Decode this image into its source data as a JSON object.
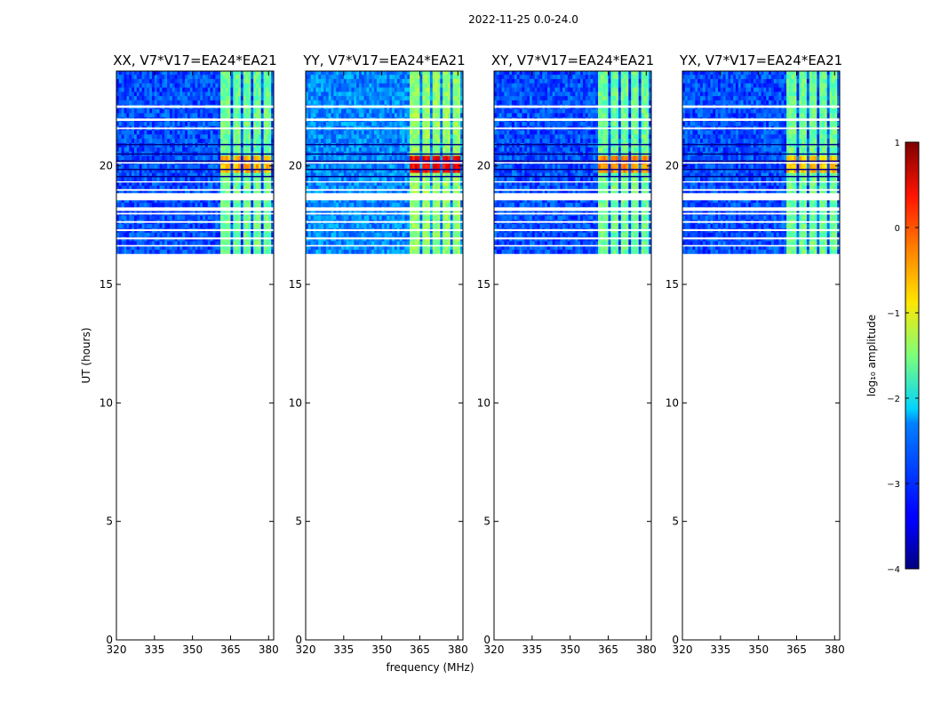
{
  "chart_data": {
    "type": "heatmap",
    "suptitle": "2022-11-25 0.0-24.0",
    "xlabel": "frequency (MHz)",
    "ylabel": "UT (hours)",
    "xlim": [
      320,
      382
    ],
    "ylim": [
      0,
      24
    ],
    "xticks": [
      320,
      335,
      350,
      365,
      380
    ],
    "yticks": [
      0,
      5,
      10,
      15,
      20
    ],
    "data_time_range": [
      16.3,
      24
    ],
    "flagged_time_bands": [
      [
        18.95,
        19.02
      ],
      [
        18.55,
        18.85
      ],
      [
        18.1,
        18.25
      ],
      [
        17.95,
        18.02
      ],
      [
        17.6,
        17.67
      ],
      [
        17.25,
        17.33
      ],
      [
        16.9,
        16.98
      ],
      [
        16.6,
        16.66
      ],
      [
        22.45,
        22.55
      ],
      [
        21.9,
        22.0
      ],
      [
        21.55,
        21.62
      ],
      [
        20.1,
        20.16
      ],
      [
        19.3,
        19.35
      ]
    ],
    "dark_time_lines": [
      20.9,
      20.5,
      20.2,
      19.85,
      19.55
    ],
    "bright_channel_columns_mhz": [
      [
        361,
        365
      ],
      [
        366,
        369
      ],
      [
        370,
        373
      ],
      [
        374,
        377
      ],
      [
        378,
        381
      ]
    ],
    "colorbar": {
      "label": "log₁₀ amplitude",
      "range": [
        -4,
        1
      ],
      "ticks": [
        {
          "value": 1,
          "label": "1"
        },
        {
          "value": 0,
          "label": "0"
        },
        {
          "value": -1,
          "label": "−1"
        },
        {
          "value": -2,
          "label": "−2"
        },
        {
          "value": -3,
          "label": "−3"
        },
        {
          "value": -4,
          "label": "−4"
        }
      ],
      "colormap": "jet"
    },
    "panels": [
      {
        "title": "XX, V7*V17=EA24*EA21",
        "background_level": -3.0,
        "column_level": -1.6,
        "hot_level": -0.5,
        "hot_time_range": [
          19.6,
          20.4
        ]
      },
      {
        "title": "YY, V7*V17=EA24*EA21",
        "background_level": -2.7,
        "column_level": -1.4,
        "hot_level": 0.4,
        "hot_time_range": [
          19.6,
          20.4
        ]
      },
      {
        "title": "XY, V7*V17=EA24*EA21",
        "background_level": -3.0,
        "column_level": -1.6,
        "hot_level": -0.3,
        "hot_time_range": [
          19.6,
          20.4
        ]
      },
      {
        "title": "YX, V7*V17=EA24*EA21",
        "background_level": -3.0,
        "column_level": -1.6,
        "hot_level": -0.6,
        "hot_time_range": [
          19.6,
          20.4
        ]
      }
    ]
  }
}
